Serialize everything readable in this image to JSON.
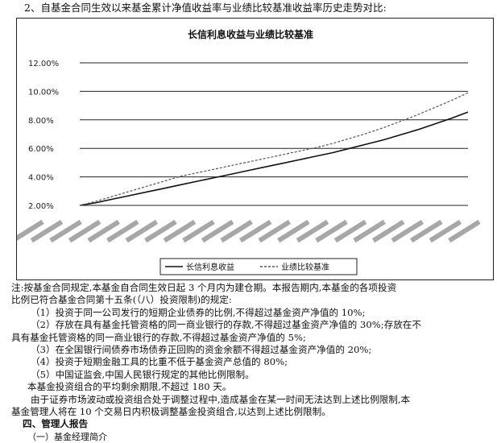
{
  "section_title": "2、自基金合同生效以来基金累计净值收益率与业绩比较基准收益率历史走势对比:",
  "chart_data": {
    "type": "line",
    "title": "长信利息收益与业绩比较基准",
    "y_tick_labels": [
      "12.00%",
      "10.00%",
      "8.00%",
      "6.00%",
      "4.00%",
      "2.00%"
    ],
    "ylim": [
      2,
      12
    ],
    "grid": "horizontal",
    "legend_placement": "bottom-center",
    "series": [
      {
        "name": "长信利息收益",
        "style": "solid",
        "color": "#111111",
        "values": [
          2.0,
          2.2,
          2.45,
          2.7,
          2.95,
          3.2,
          3.45,
          3.7,
          3.95,
          4.2,
          4.45,
          4.7,
          4.95,
          5.2,
          5.45,
          5.7,
          6.0,
          6.3,
          6.6,
          6.95,
          7.3,
          7.7,
          8.1,
          8.55
        ]
      },
      {
        "name": "业绩比较基准",
        "style": "dashed",
        "color": "#555555",
        "values": [
          2.0,
          2.3,
          2.65,
          3.0,
          3.35,
          3.7,
          4.05,
          4.3,
          4.55,
          4.8,
          5.05,
          5.3,
          5.55,
          5.8,
          6.05,
          6.35,
          6.7,
          7.05,
          7.45,
          7.9,
          8.35,
          8.85,
          9.35,
          9.9
        ]
      }
    ]
  },
  "notes": {
    "note_line1": "注:按基金合同规定,本基金自合同生效日起 3 个月内为建仓期。本报告期内,本基金的各项投资",
    "note_line2": "比例已符合基金合同第十五条(（八）投资限制)的规定:",
    "item1": "（1）投资于同一公司发行的短期企业债券的比例,不得超过基金资产净值的 10%;",
    "item2a": "（2）存放在具有基金托管资格的同一商业银行的存款,不得超过基金资产净值的 30%;存放在不",
    "item2b": "具有基金托管资格的同一商业银行的存款,不得超过基金资产净值的 5%;",
    "item3": "（3）在全国银行间债券市场债券正回购的资金余额不得超过基金资产净值的 20%;",
    "item4": "（4）投资于短期金融工具的比重不低于基金资产总值的 80%;",
    "item5": "（5）中国证监会,中国人民银行规定的其他比例限制。",
    "maturity": "本基金投资组合的平均剩余期限,不超过 180 天。",
    "market_a": "由于证券市场波动或投资组合处于调整过程中,造成基金在某一时间无法达到上述比例限制,本",
    "market_b": "基金管理人将在 10 个交易日内积极调整基金投资组合,以达到上述比例限制。",
    "heading": "四、管理人报告",
    "sub_heading": "（一）基金经理简介"
  }
}
